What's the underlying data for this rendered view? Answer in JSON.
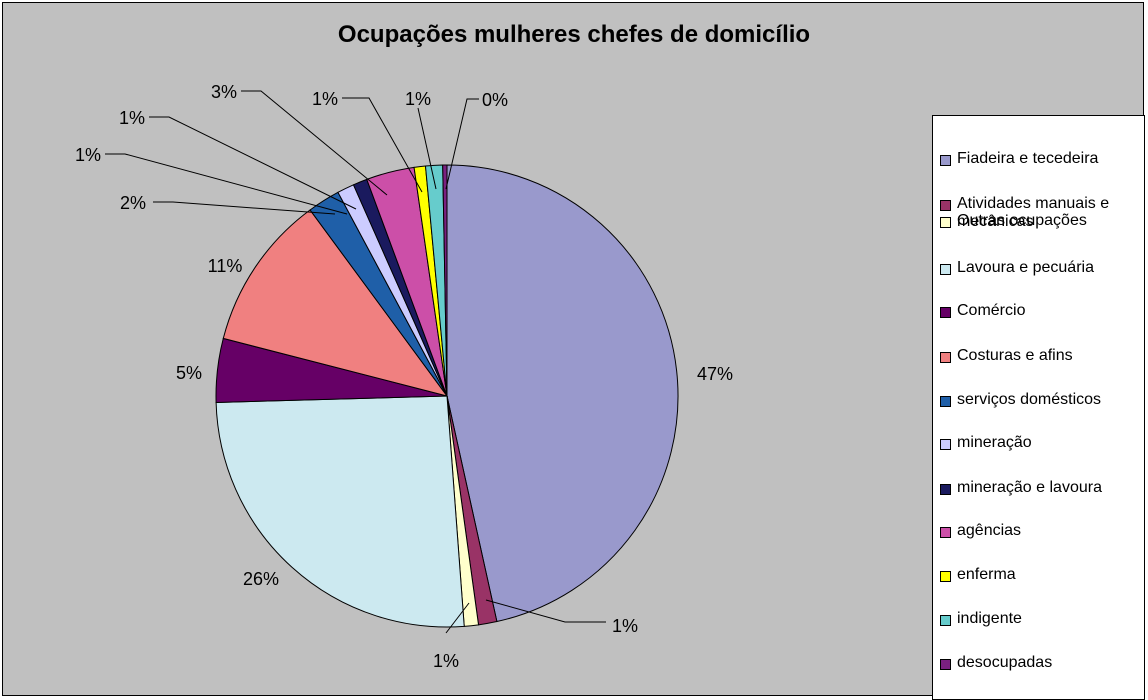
{
  "chart_data": {
    "type": "pie",
    "title": "Ocupações mulheres chefes de domicílio",
    "slices": [
      {
        "label": "Fiadeira e tecedeira",
        "value": 47,
        "value_label": "47%",
        "color": "#9999cc"
      },
      {
        "label": "Atividades manuais e mecânicas",
        "value": 1.3,
        "value_label": "1%",
        "color": "#993366"
      },
      {
        "label": "Outras ocupações",
        "value": 1,
        "value_label": "1%",
        "color": "#ffffcc"
      },
      {
        "label": "Lavoura e pecuária",
        "value": 26,
        "value_label": "26%",
        "color": "#cce9f0"
      },
      {
        "label": "Comércio",
        "value": 4.5,
        "value_label": "5%",
        "color": "#660066"
      },
      {
        "label": "Costuras e afins",
        "value": 11,
        "value_label": "11%",
        "color": "#f08080"
      },
      {
        "label": "serviços domésticos",
        "value": 2.3,
        "value_label": "2%",
        "color": "#1f5fa8"
      },
      {
        "label": "mineração",
        "value": 1.2,
        "value_label": "1%",
        "color": "#ccccff"
      },
      {
        "label": "mineração e lavoura",
        "value": 1,
        "value_label": "1%",
        "color": "#1a1a5e"
      },
      {
        "label": "agências",
        "value": 3.4,
        "value_label": "3%",
        "color": "#cc4fa8"
      },
      {
        "label": "enferma",
        "value": 0.8,
        "value_label": "1%",
        "color": "#ffff00"
      },
      {
        "label": "indigente",
        "value": 1.2,
        "value_label": "1%",
        "color": "#66cccc"
      },
      {
        "label": "desocupadas",
        "value": 0.3,
        "value_label": "0%",
        "color": "#7a2080"
      }
    ],
    "legend_position": "right"
  }
}
